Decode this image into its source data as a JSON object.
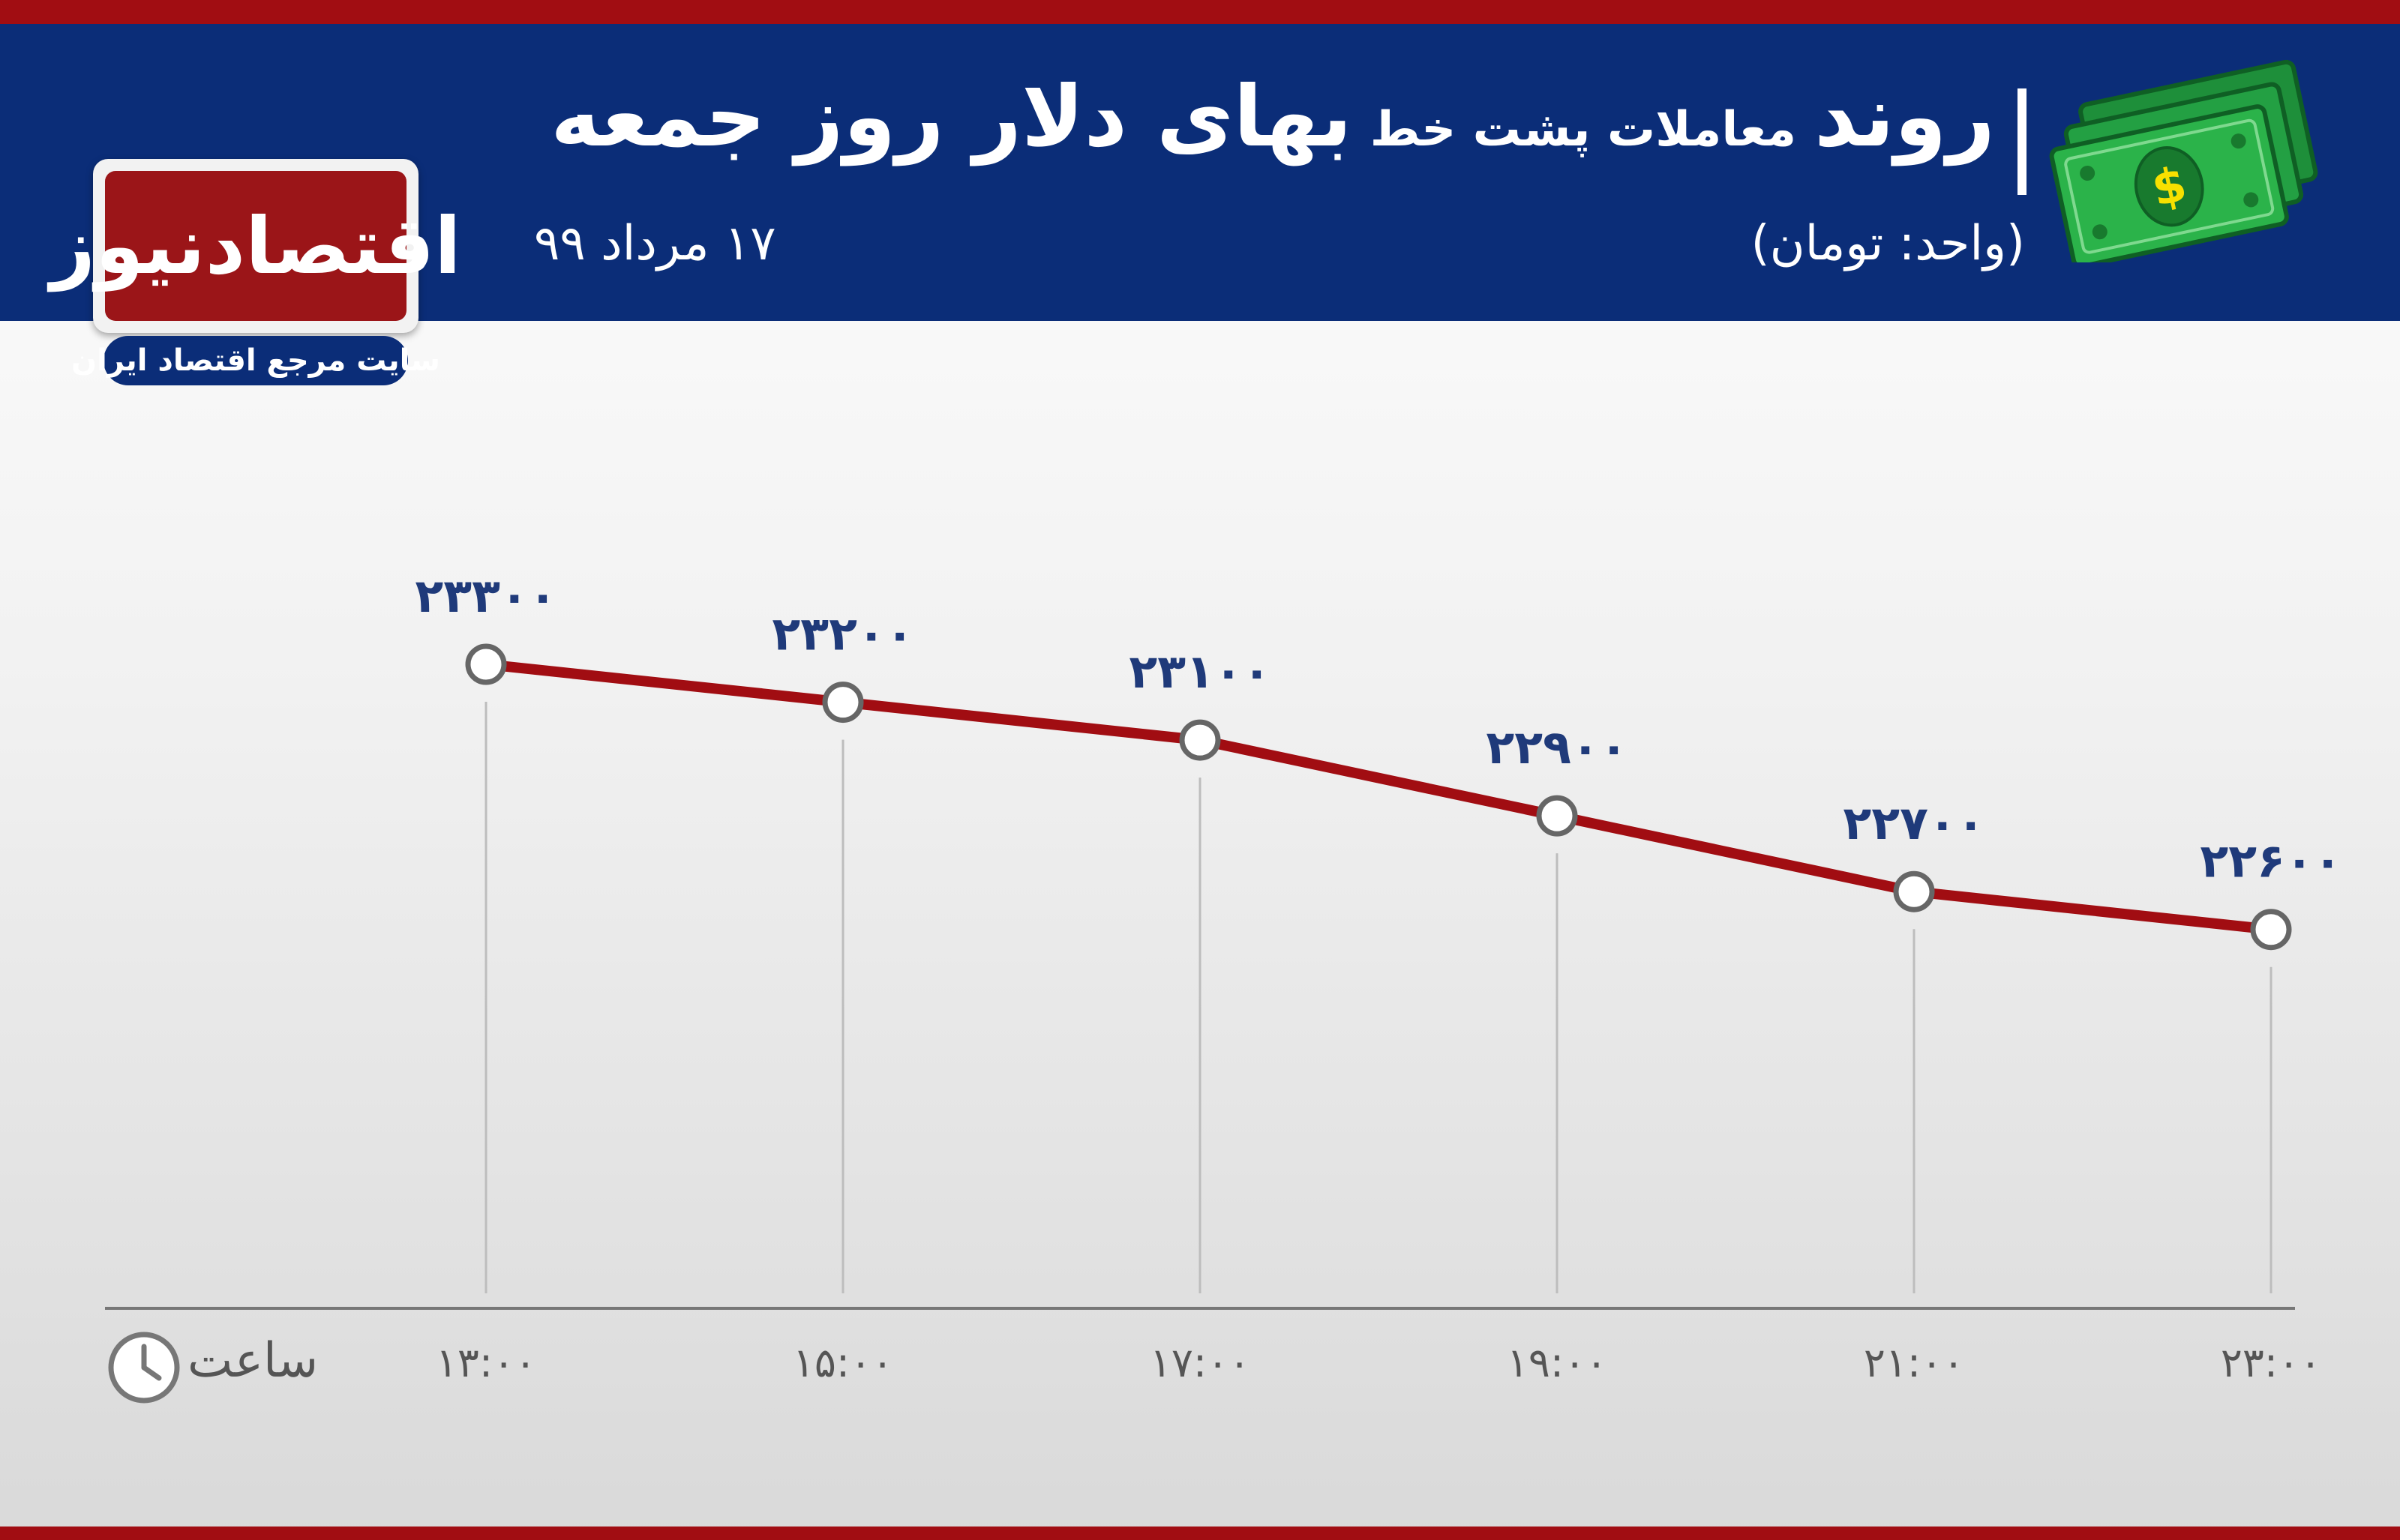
{
  "header": {
    "title_part1": "روند",
    "title_part2": "معاملات پشت خط",
    "title_part3": "بهای دلار روز جمعه",
    "unit": "(واحد: تومان)",
    "date": "۱۷ مرداد ۹۹"
  },
  "logo": {
    "name": "اقتصادنیوز",
    "tagline": "سایت مرجع اقتصاد ایران"
  },
  "axis": {
    "x_caption": "ساعت"
  },
  "colors": {
    "header_bg": "#0b2d78",
    "stripe": "#a10d12",
    "line": "#a10d12",
    "value_label": "#1f3a7a",
    "money_green": "#2bb34a"
  },
  "chart_data": {
    "type": "line",
    "title": "روند معاملات پشت خط بهای دلار روز جمعه",
    "xlabel": "ساعت",
    "ylabel": "",
    "categories": [
      "۱۳:۰۰",
      "۱۵:۰۰",
      "۱۷:۰۰",
      "۱۹:۰۰",
      "۲۱:۰۰",
      "۲۳:۰۰"
    ],
    "values": [
      23300,
      23200,
      23100,
      22900,
      22700,
      22600
    ],
    "value_labels": [
      "۲۳۳۰۰",
      "۲۳۲۰۰",
      "۲۳۱۰۰",
      "۲۲۹۰۰",
      "۲۲۷۰۰",
      "۲۲۶۰۰"
    ],
    "ylim": [
      21600,
      23500
    ],
    "grid": false,
    "legend": "none"
  }
}
